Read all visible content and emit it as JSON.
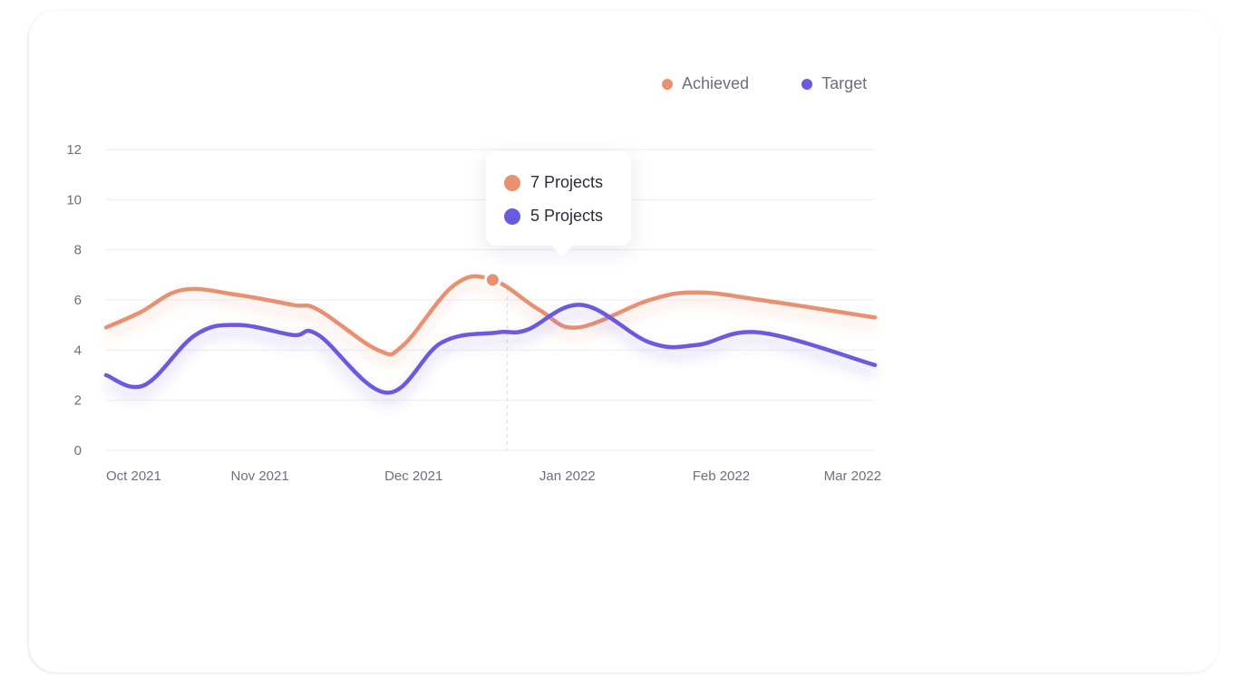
{
  "colors": {
    "achieved": "#e8906f",
    "target": "#6a5ae0",
    "grid": "#eceef4",
    "text": "#6b6f82"
  },
  "legend": {
    "items": [
      {
        "label": "Achieved",
        "color": "#e8906f"
      },
      {
        "label": "Target",
        "color": "#6a5ae0"
      }
    ]
  },
  "tooltip": {
    "rows": [
      {
        "label": "7 Projects",
        "color": "#e8906f"
      },
      {
        "label": "5 Projects",
        "color": "#6a5ae0"
      }
    ]
  },
  "chart_data": {
    "type": "line",
    "title": "",
    "xlabel": "",
    "ylabel": "",
    "ylim": [
      0,
      12
    ],
    "yticks": [
      0,
      2,
      4,
      6,
      8,
      10,
      12
    ],
    "xlim": [
      "2021-10-01",
      "2022-03-31"
    ],
    "categories": [
      "Oct 2021",
      "Nov 2021",
      "Dec 2021",
      "Jan 2022",
      "Feb 2022",
      "Mar 2022"
    ],
    "grid": true,
    "legend_position": "top-right",
    "series": [
      {
        "name": "Achieved",
        "color": "#e8906f",
        "points": [
          [
            "2021-10-01",
            4.9
          ],
          [
            "2021-10-09",
            5.5
          ],
          [
            "2021-10-19",
            6.4
          ],
          [
            "2021-11-01",
            6.2
          ],
          [
            "2021-11-14",
            5.8
          ],
          [
            "2021-11-20",
            5.6
          ],
          [
            "2021-12-04",
            4.0
          ],
          [
            "2021-12-10",
            4.2
          ],
          [
            "2021-12-22",
            6.6
          ],
          [
            "2021-12-31",
            6.8
          ],
          [
            "2022-01-11",
            5.6
          ],
          [
            "2022-01-20",
            4.9
          ],
          [
            "2022-02-06",
            6.0
          ],
          [
            "2022-02-17",
            6.3
          ],
          [
            "2022-03-04",
            6.0
          ],
          [
            "2022-03-31",
            5.3
          ]
        ]
      },
      {
        "name": "Target",
        "color": "#6a5ae0",
        "points": [
          [
            "2021-10-01",
            3.0
          ],
          [
            "2021-10-10",
            2.6
          ],
          [
            "2021-10-22",
            4.6
          ],
          [
            "2021-11-01",
            5.0
          ],
          [
            "2021-11-14",
            4.6
          ],
          [
            "2021-11-20",
            4.6
          ],
          [
            "2021-12-06",
            2.3
          ],
          [
            "2021-12-19",
            4.3
          ],
          [
            "2022-01-01",
            4.7
          ],
          [
            "2022-01-08",
            4.8
          ],
          [
            "2022-01-21",
            5.8
          ],
          [
            "2022-02-06",
            4.3
          ],
          [
            "2022-02-17",
            4.2
          ],
          [
            "2022-03-04",
            4.7
          ],
          [
            "2022-03-31",
            3.4
          ]
        ]
      }
    ],
    "highlight": {
      "date": "2021-12-31",
      "series": "Achieved",
      "value": 6.8
    }
  }
}
